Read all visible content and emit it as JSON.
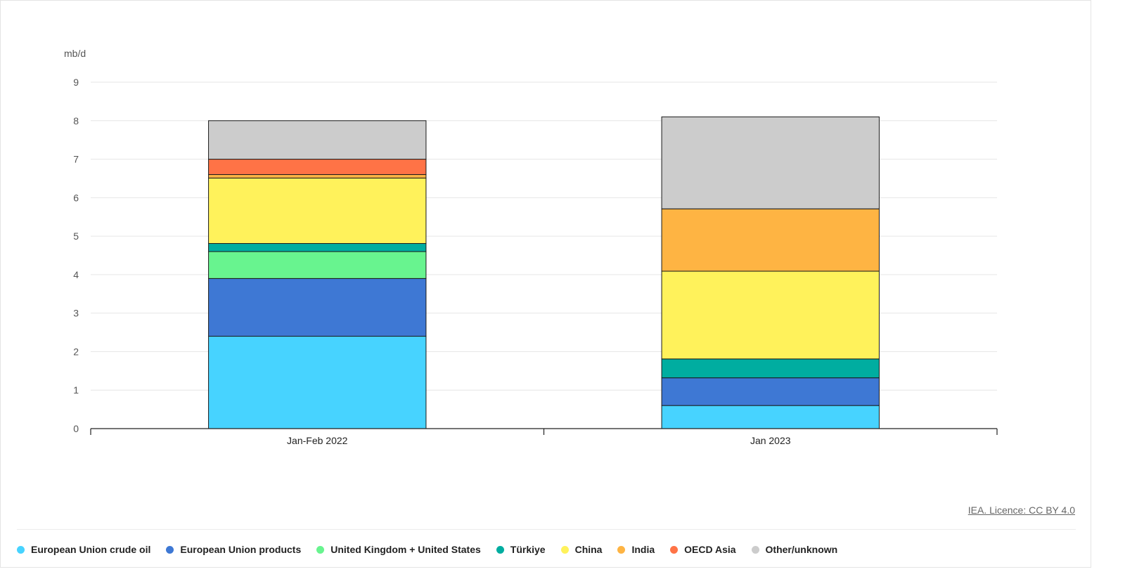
{
  "chart_data": {
    "type": "bar",
    "stacked": true,
    "title": "",
    "ylabel": "mb/d",
    "xlabel": "",
    "ylim": [
      0,
      9
    ],
    "yticks": [
      0,
      1,
      2,
      3,
      4,
      5,
      6,
      7,
      8,
      9
    ],
    "grid": true,
    "legend_position": "bottom",
    "categories": [
      "Jan-Feb 2022",
      "Jan 2023"
    ],
    "series": [
      {
        "name": "European Union crude oil",
        "color": "#47d3ff",
        "values": [
          2.4,
          0.6
        ]
      },
      {
        "name": "European Union products",
        "color": "#3e78d4",
        "values": [
          1.5,
          0.72
        ]
      },
      {
        "name": "United Kingdom + United States",
        "color": "#68f48f",
        "values": [
          0.7,
          0
        ]
      },
      {
        "name": "Türkiye",
        "color": "#00ada0",
        "values": [
          0.21,
          0.49
        ]
      },
      {
        "name": "China",
        "color": "#fff25b",
        "values": [
          1.7,
          2.28
        ]
      },
      {
        "name": "India",
        "color": "#feb443",
        "values": [
          0.09,
          1.62
        ]
      },
      {
        "name": "OECD Asia",
        "color": "#ff7346",
        "values": [
          0.4,
          0
        ]
      },
      {
        "name": "Other/unknown",
        "color": "#cccccc",
        "values": [
          1.0,
          2.39
        ]
      }
    ]
  },
  "credit": "IEA. Licence: CC BY 4.0"
}
